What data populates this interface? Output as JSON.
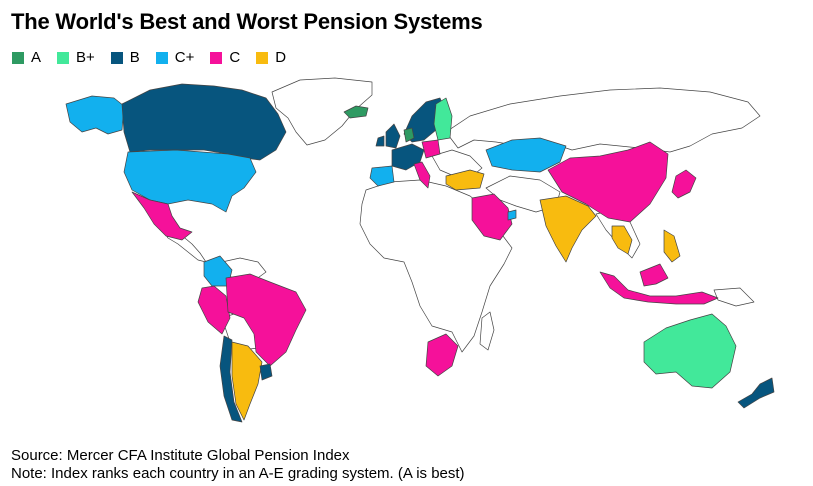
{
  "title": "The World's Best and Worst Pension Systems",
  "legend": [
    {
      "grade": "A",
      "color": "#2e9a62"
    },
    {
      "grade": "B+",
      "color": "#42e89a"
    },
    {
      "grade": "B",
      "color": "#07557e"
    },
    {
      "grade": "C+",
      "color": "#12b0ee"
    },
    {
      "grade": "C",
      "color": "#f5119a"
    },
    {
      "grade": "D",
      "color": "#f8bb0f"
    }
  ],
  "map_regions": [
    {
      "name": "Canada",
      "grade": "B"
    },
    {
      "name": "Alaska (United States)",
      "grade": "C+"
    },
    {
      "name": "United States",
      "grade": "C+"
    },
    {
      "name": "Mexico",
      "grade": "C"
    },
    {
      "name": "Colombia",
      "grade": "C+"
    },
    {
      "name": "Brazil",
      "grade": "C"
    },
    {
      "name": "Peru",
      "grade": "C"
    },
    {
      "name": "Chile",
      "grade": "B"
    },
    {
      "name": "Argentina",
      "grade": "D"
    },
    {
      "name": "Uruguay",
      "grade": "B"
    },
    {
      "name": "Iceland",
      "grade": "A"
    },
    {
      "name": "Norway",
      "grade": "B"
    },
    {
      "name": "Sweden",
      "grade": "B"
    },
    {
      "name": "Finland",
      "grade": "B+"
    },
    {
      "name": "Denmark",
      "grade": "A"
    },
    {
      "name": "Netherlands",
      "grade": "A"
    },
    {
      "name": "United Kingdom",
      "grade": "B"
    },
    {
      "name": "Ireland",
      "grade": "B"
    },
    {
      "name": "France",
      "grade": "B"
    },
    {
      "name": "Spain",
      "grade": "C+"
    },
    {
      "name": "Germany",
      "grade": "B"
    },
    {
      "name": "Poland",
      "grade": "C"
    },
    {
      "name": "Italy",
      "grade": "C"
    },
    {
      "name": "Turkey",
      "grade": "D"
    },
    {
      "name": "Kazakhstan",
      "grade": "C+"
    },
    {
      "name": "China",
      "grade": "C"
    },
    {
      "name": "Japan",
      "grade": "C"
    },
    {
      "name": "South Korea",
      "grade": "C"
    },
    {
      "name": "India",
      "grade": "D"
    },
    {
      "name": "Saudi Arabia",
      "grade": "C"
    },
    {
      "name": "United Arab Emirates",
      "grade": "C+"
    },
    {
      "name": "Thailand",
      "grade": "D"
    },
    {
      "name": "Philippines",
      "grade": "D"
    },
    {
      "name": "Malaysia",
      "grade": "C"
    },
    {
      "name": "Indonesia",
      "grade": "C"
    },
    {
      "name": "Australia",
      "grade": "B+"
    },
    {
      "name": "New Zealand",
      "grade": "B"
    },
    {
      "name": "South Africa",
      "grade": "C"
    }
  ],
  "footer": {
    "source": "Source: Mercer CFA Institute Global Pension Index",
    "note": "Note: Index ranks each country in an A-E grading system. (A is best)"
  }
}
